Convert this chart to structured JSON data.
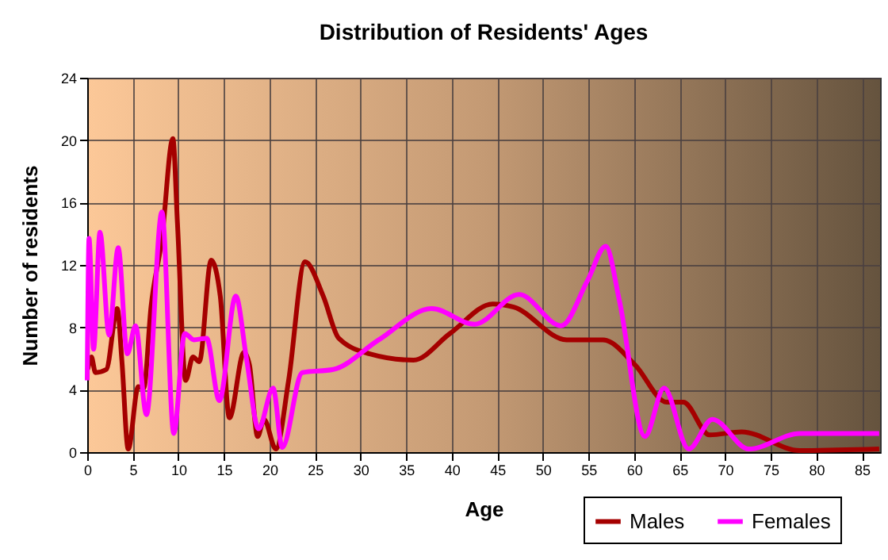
{
  "chart_data": {
    "type": "line",
    "title": "Distribution of Residents' Ages",
    "xlabel": "Age",
    "ylabel": "Number of residents",
    "xlim": [
      0,
      87
    ],
    "xticks": [
      0,
      5,
      10,
      15,
      20,
      25,
      30,
      35,
      40,
      45,
      50,
      55,
      60,
      65,
      70,
      75,
      80,
      85
    ],
    "ylim": [
      0,
      24
    ],
    "yticks": [
      0,
      4,
      8,
      12,
      16,
      20,
      24
    ],
    "grid": true,
    "legend": "bottom right",
    "marker": "none",
    "line_style": "solid",
    "series": [
      {
        "name": "Males",
        "color": "#a50000",
        "x": [
          0.06,
          0.46,
          0.9,
          2.1,
          3.3,
          3.8,
          4.5,
          5.6,
          6.2,
          7.0,
          8.2,
          9.4,
          9.9,
          10.8,
          11.6,
          12.3,
          13.6,
          14.6,
          15.6,
          17.2,
          17.8,
          18.7,
          19.4,
          20.7,
          22.1,
          23.9,
          25.9,
          27.6,
          31,
          35.8,
          39.8,
          44.5,
          46.8,
          52.6,
          56.6,
          60.1,
          63.6,
          65.4,
          68.3,
          71.8,
          78.2,
          86.9
        ],
        "values": [
          5.3,
          6.1,
          5.1,
          5.3,
          9.2,
          5.9,
          0.2,
          4.2,
          4.1,
          9.3,
          13.7,
          20.1,
          14.7,
          4.6,
          6.1,
          5.8,
          12.3,
          10,
          2.2,
          6.4,
          5.6,
          1.0,
          2.1,
          0.2,
          4.6,
          12.2,
          10,
          7.3,
          6.3,
          5.9,
          7.6,
          9.5,
          9.3,
          7.2,
          7.2,
          5.6,
          3.2,
          3.2,
          1.1,
          1.3,
          0.1,
          0.2
        ]
      },
      {
        "name": "Females",
        "color": "#ff00ff",
        "x": [
          0,
          0.2,
          0.7,
          1.4,
          2.4,
          3.4,
          4.4,
          5.3,
          6.5,
          8.2,
          9.5,
          10.7,
          11.7,
          13.1,
          14.5,
          16.3,
          17.5,
          18.8,
          20.4,
          21.4,
          23.6,
          27,
          32,
          37.8,
          42.5,
          47.4,
          52,
          54.9,
          56.9,
          58.4,
          61.2,
          63.3,
          66,
          68.6,
          72.6,
          78.2,
          86.9
        ],
        "values": [
          4.6,
          13.7,
          6.6,
          14.1,
          7.5,
          13.1,
          6.3,
          8.1,
          2.4,
          15.4,
          1.2,
          7.6,
          7.2,
          7.3,
          3.3,
          10,
          5.9,
          1.5,
          4.1,
          0.3,
          5.1,
          5.3,
          7.2,
          9.2,
          8.2,
          10.1,
          8.1,
          11,
          13.2,
          9.7,
          1.0,
          4.1,
          0.2,
          2.1,
          0.2,
          1.2,
          1.2
        ]
      }
    ]
  }
}
